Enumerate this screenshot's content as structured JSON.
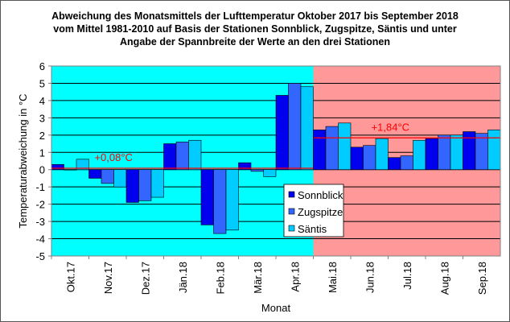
{
  "chart_data": {
    "type": "bar",
    "title": [
      "Abweichung des Monatsmittels der Lufttemperatur Oktober 2017 bis September 2018",
      "vom Mittel 1981-2010 auf Basis der Stationen Sonnblick, Zugspitze, Säntis und unter",
      "Angabe der Spannbreite der Werte an den drei Stationen"
    ],
    "xlabel": "Monat",
    "ylabel": "Temperaturabweichung in °C",
    "ylim": [
      -5,
      6
    ],
    "yticks": [
      "6",
      "5",
      "4",
      "3",
      "2",
      "1",
      "0",
      "-1",
      "-2",
      "-3",
      "-4",
      "-5"
    ],
    "grid": true,
    "legend_position": "center-right",
    "categories": [
      "Okt.17",
      "Nov.17",
      "Dez.17",
      "Jän.18",
      "Feb.18",
      "Mär.18",
      "Apr.18",
      "Mai.18",
      "Jun.18",
      "Jul.18",
      "Aug.18",
      "Sep.18"
    ],
    "series": [
      {
        "name": "Sonnblick",
        "color": "#0000ee",
        "values": [
          0.3,
          -0.5,
          -1.9,
          1.5,
          -3.2,
          0.4,
          4.3,
          2.3,
          1.3,
          0.7,
          1.8,
          2.2
        ]
      },
      {
        "name": "Zugspitze",
        "color": "#3366ff",
        "values": [
          0.0,
          -0.8,
          -1.8,
          1.6,
          -3.7,
          -0.1,
          5.0,
          2.5,
          1.4,
          0.8,
          2.0,
          2.1
        ]
      },
      {
        "name": "Säntis",
        "color": "#00ccff",
        "values": [
          0.6,
          -1.0,
          -1.6,
          1.7,
          -3.5,
          -0.4,
          4.8,
          2.7,
          1.8,
          1.7,
          2.0,
          2.3
        ]
      }
    ],
    "periods": [
      {
        "label": "+0,08°C",
        "mean": 0.08,
        "from": 0,
        "to": 6,
        "background": "#00ffff"
      },
      {
        "label": "+1,84°C",
        "mean": 1.84,
        "from": 7,
        "to": 11,
        "background": "#ff9999"
      }
    ],
    "mean_line_color": "#ff0000"
  }
}
